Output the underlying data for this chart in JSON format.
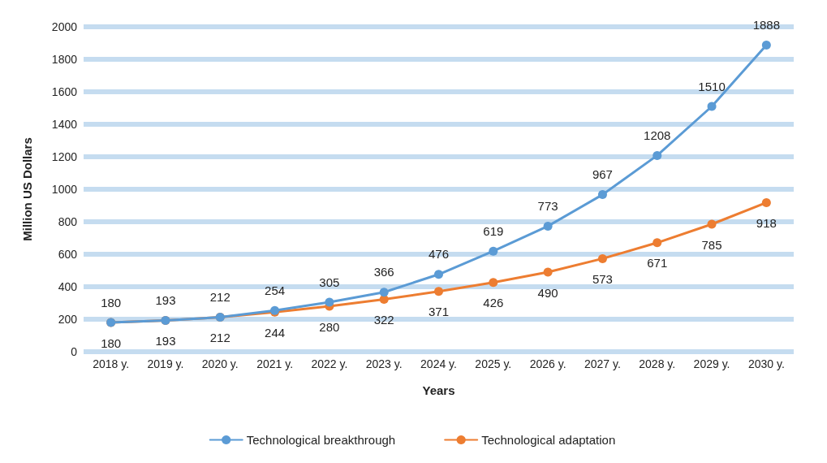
{
  "chart_data": {
    "type": "line",
    "xlabel": "Years",
    "ylabel": "Million US Dollars",
    "categories": [
      "2018 y.",
      "2019 y.",
      "2020 y.",
      "2021 y.",
      "2022 y.",
      "2023 y.",
      "2024 y.",
      "2025 y.",
      "2026 y.",
      "2027 y.",
      "2028 y.",
      "2029 y.",
      "2030 y."
    ],
    "series": [
      {
        "name": "Technological breakthrough",
        "color": "#5b9bd5",
        "values": [
          180,
          193,
          212,
          254,
          305,
          366,
          476,
          619,
          773,
          967,
          1208,
          1510,
          1888
        ]
      },
      {
        "name": "Technological adaptation",
        "color": "#ed7d31",
        "values": [
          180,
          193,
          212,
          244,
          280,
          322,
          371,
          426,
          490,
          573,
          671,
          785,
          918
        ]
      }
    ],
    "ylim": [
      0,
      2000
    ],
    "yticks": [
      0,
      200,
      400,
      600,
      800,
      1000,
      1200,
      1400,
      1600,
      1800,
      2000
    ],
    "grid": "y",
    "legend": "bottom",
    "marker": "circle",
    "line_style": "solid",
    "data_labels": true
  }
}
